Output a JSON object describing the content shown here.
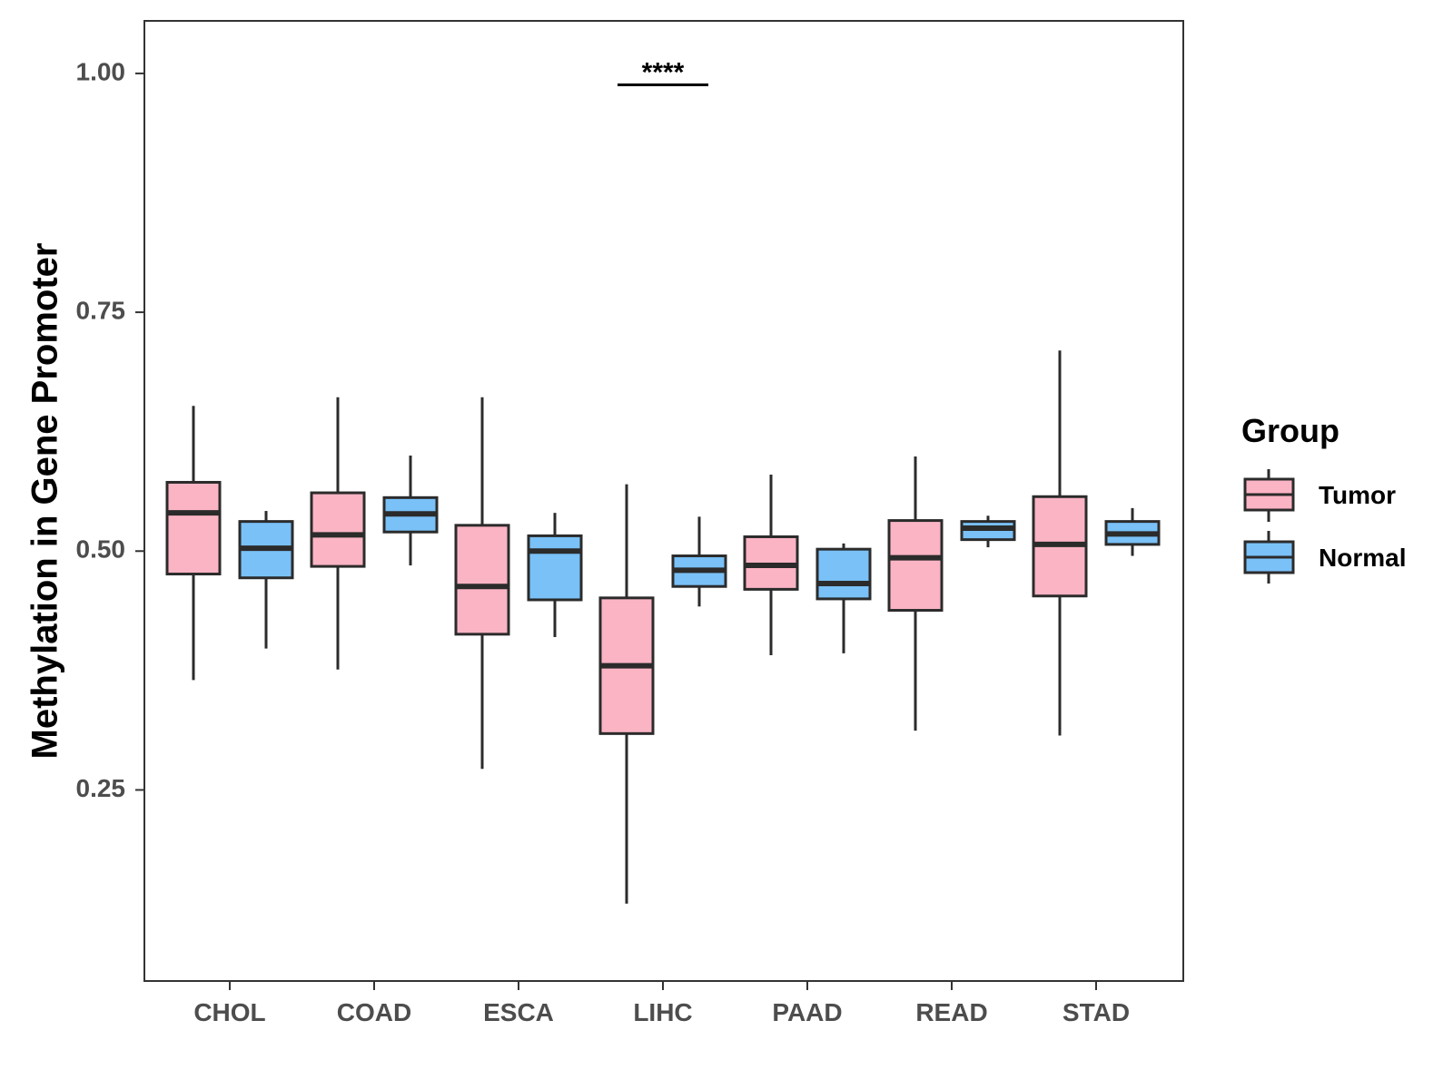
{
  "chart_data": {
    "type": "boxplot",
    "title": "",
    "xlabel": "",
    "ylabel": "Methylation in Gene Promoter",
    "ylim": [
      0.05,
      1.055
    ],
    "yticks": [
      "0.25",
      "0.50",
      "0.75",
      "1.00"
    ],
    "categories": [
      "CHOL",
      "COAD",
      "ESCA",
      "LIHC",
      "PAAD",
      "READ",
      "STAD"
    ],
    "legend": {
      "title": "Group",
      "position": "right",
      "entries": [
        {
          "name": "Tumor",
          "color": "#fbb4c4"
        },
        {
          "name": "Normal",
          "color": "#79c1f7"
        }
      ]
    },
    "series": [
      {
        "name": "Tumor",
        "color": "#fbb4c4",
        "boxes": [
          {
            "category": "CHOL",
            "min": 0.365,
            "q1": 0.476,
            "median": 0.54,
            "q3": 0.572,
            "max": 0.652
          },
          {
            "category": "COAD",
            "min": 0.376,
            "q1": 0.484,
            "median": 0.517,
            "q3": 0.561,
            "max": 0.661
          },
          {
            "category": "ESCA",
            "min": 0.272,
            "q1": 0.413,
            "median": 0.463,
            "q3": 0.527,
            "max": 0.661
          },
          {
            "category": "LIHC",
            "min": 0.131,
            "q1": 0.309,
            "median": 0.38,
            "q3": 0.451,
            "max": 0.57
          },
          {
            "category": "PAAD",
            "min": 0.391,
            "q1": 0.46,
            "median": 0.485,
            "q3": 0.515,
            "max": 0.58
          },
          {
            "category": "READ",
            "min": 0.312,
            "q1": 0.438,
            "median": 0.493,
            "q3": 0.532,
            "max": 0.599
          },
          {
            "category": "STAD",
            "min": 0.307,
            "q1": 0.453,
            "median": 0.507,
            "q3": 0.557,
            "max": 0.71
          }
        ]
      },
      {
        "name": "Normal",
        "color": "#79c1f7",
        "boxes": [
          {
            "category": "CHOL",
            "min": 0.398,
            "q1": 0.472,
            "median": 0.503,
            "q3": 0.531,
            "max": 0.542
          },
          {
            "category": "COAD",
            "min": 0.485,
            "q1": 0.52,
            "median": 0.539,
            "q3": 0.556,
            "max": 0.6
          },
          {
            "category": "ESCA",
            "min": 0.41,
            "q1": 0.449,
            "median": 0.5,
            "q3": 0.516,
            "max": 0.54
          },
          {
            "category": "LIHC",
            "min": 0.442,
            "q1": 0.463,
            "median": 0.48,
            "q3": 0.495,
            "max": 0.536
          },
          {
            "category": "PAAD",
            "min": 0.393,
            "q1": 0.45,
            "median": 0.466,
            "q3": 0.502,
            "max": 0.508
          },
          {
            "category": "READ",
            "min": 0.504,
            "q1": 0.512,
            "median": 0.524,
            "q3": 0.531,
            "max": 0.537
          },
          {
            "category": "STAD",
            "min": 0.495,
            "q1": 0.507,
            "median": 0.518,
            "q3": 0.531,
            "max": 0.545
          }
        ]
      }
    ],
    "annotations": [
      {
        "category": "LIHC",
        "text": "****",
        "y": 0.988
      }
    ]
  }
}
